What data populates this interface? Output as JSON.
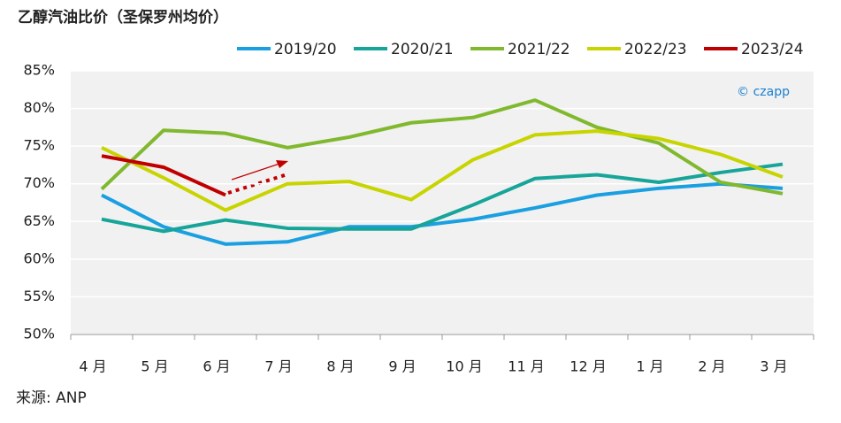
{
  "chart_data": {
    "type": "line",
    "title": "乙醇汽油比价（圣保罗州均价）",
    "source": "来源: ANP",
    "watermark": "© czapp",
    "categories": [
      "4 月",
      "5 月",
      "6 月",
      "7 月",
      "8 月",
      "9 月",
      "10 月",
      "11 月",
      "12 月",
      "1 月",
      "2 月",
      "3 月"
    ],
    "series": [
      {
        "name": "2019/20",
        "color": "#1a9fe0",
        "values": [
          68.5,
          64.3,
          62.0,
          62.3,
          64.3,
          64.3,
          65.3,
          66.8,
          68.5,
          69.4,
          70.0,
          69.4
        ]
      },
      {
        "name": "2020/21",
        "color": "#17a59a",
        "values": [
          65.3,
          63.7,
          65.2,
          64.1,
          64.0,
          64.0,
          67.2,
          70.7,
          71.2,
          70.2,
          71.5,
          72.6
        ]
      },
      {
        "name": "2021/22",
        "color": "#80b82e",
        "values": [
          69.3,
          77.1,
          76.7,
          74.8,
          76.2,
          78.1,
          78.8,
          81.1,
          77.5,
          75.4,
          70.2,
          68.7
        ]
      },
      {
        "name": "2022/23",
        "color": "#c8d400",
        "values": [
          74.8,
          70.8,
          66.5,
          70.0,
          70.3,
          67.9,
          73.2,
          76.5,
          77.0,
          76.0,
          73.9,
          70.9
        ]
      },
      {
        "name": "2023/24",
        "color": "#c00000",
        "values": [
          73.7,
          72.2,
          68.5,
          null,
          null,
          null,
          null,
          null,
          null,
          null,
          null,
          null
        ]
      }
    ],
    "ylim": [
      50,
      85
    ],
    "yticks": [
      {
        "value": 50,
        "label": "50%"
      },
      {
        "value": 55,
        "label": "55%"
      },
      {
        "value": 60,
        "label": "60%"
      },
      {
        "value": 65,
        "label": "65%"
      },
      {
        "value": 70,
        "label": "70%"
      },
      {
        "value": 75,
        "label": "75%"
      },
      {
        "value": 80,
        "label": "80%"
      },
      {
        "value": 85,
        "label": "85%"
      }
    ],
    "grid": true,
    "legend": "top"
  }
}
